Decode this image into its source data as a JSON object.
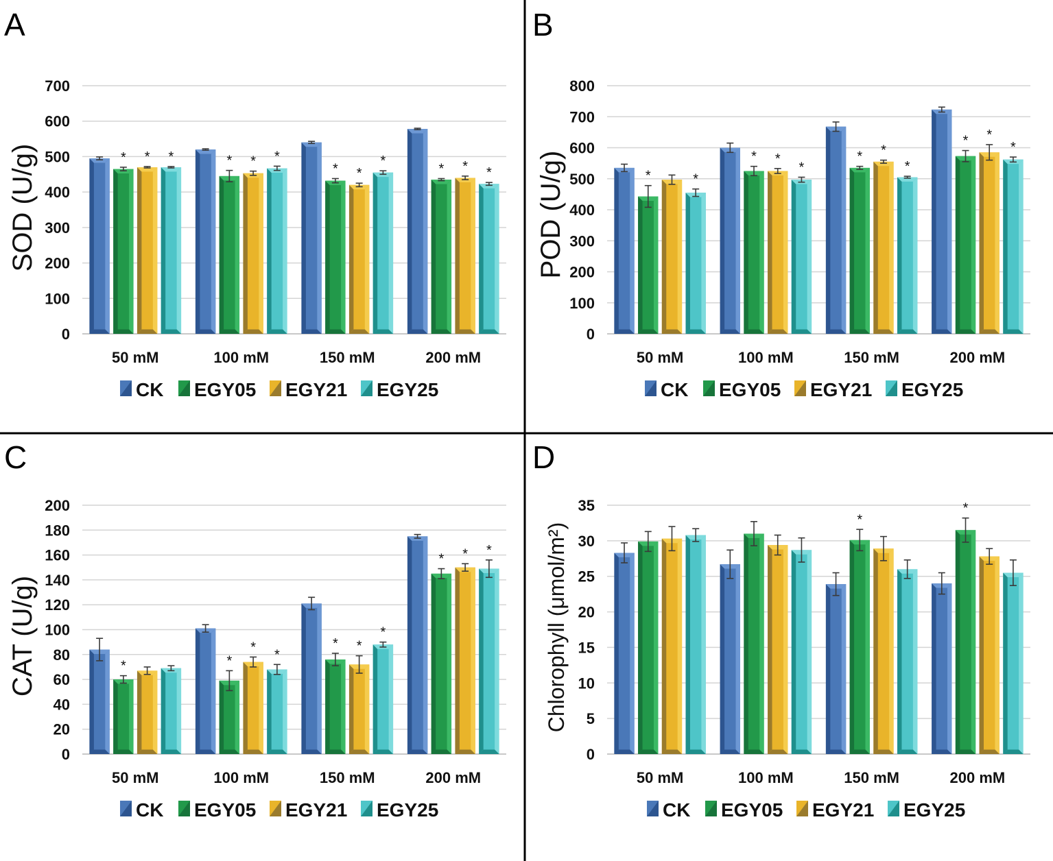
{
  "series_styles": [
    {
      "name": "CK",
      "main": "#4a78b8",
      "light": "#6d98d4",
      "dark": "#2d5590"
    },
    {
      "name": "EGY05",
      "main": "#22994a",
      "light": "#3bb965",
      "dark": "#17743a"
    },
    {
      "name": "EGY21",
      "main": "#e9b42a",
      "light": "#f5cc4e",
      "dark": "#9a7b2c"
    },
    {
      "name": "EGY25",
      "main": "#4ec5c8",
      "light": "#7edbdd",
      "dark": "#1f8f8c"
    }
  ],
  "chart_data": [
    {
      "panel": "A",
      "type": "bar",
      "title": "",
      "xlabel": "",
      "ylabel": "SOD (U/g)",
      "ylim": [
        0,
        700
      ],
      "yticks": [
        0,
        100,
        200,
        300,
        400,
        500,
        600,
        700
      ],
      "categories": [
        "50 mM",
        "100 mM",
        "150 mM",
        "200 mM"
      ],
      "legend": [
        "CK",
        "EGY05",
        "EGY21",
        "EGY25"
      ],
      "series": [
        {
          "name": "CK",
          "values": [
            495,
            520,
            540,
            578
          ],
          "errors": [
            4,
            2,
            3,
            2
          ],
          "stars": [
            false,
            false,
            false,
            false
          ]
        },
        {
          "name": "EGY05",
          "values": [
            465,
            445,
            432,
            435
          ],
          "errors": [
            5,
            16,
            6,
            3
          ],
          "stars": [
            true,
            true,
            true,
            true
          ]
        },
        {
          "name": "EGY21",
          "values": [
            470,
            453,
            420,
            440
          ],
          "errors": [
            2,
            6,
            5,
            5
          ],
          "stars": [
            true,
            true,
            true,
            true
          ]
        },
        {
          "name": "EGY25",
          "values": [
            470,
            467,
            455,
            423
          ],
          "errors": [
            2,
            6,
            5,
            4
          ],
          "stars": [
            true,
            true,
            true,
            true
          ]
        }
      ]
    },
    {
      "panel": "B",
      "type": "bar",
      "title": "",
      "xlabel": "",
      "ylabel": "POD (U/g)",
      "ylim": [
        0,
        800
      ],
      "yticks": [
        0,
        100,
        200,
        300,
        400,
        500,
        600,
        700,
        800
      ],
      "categories": [
        "50 mM",
        "100 mM",
        "150 mM",
        "200 mM"
      ],
      "legend": [
        "CK",
        "EGY05",
        "EGY21",
        "EGY25"
      ],
      "series": [
        {
          "name": "CK",
          "values": [
            535,
            600,
            668,
            723
          ],
          "errors": [
            12,
            15,
            15,
            8
          ],
          "stars": [
            false,
            false,
            false,
            false
          ]
        },
        {
          "name": "EGY05",
          "values": [
            443,
            525,
            535,
            573
          ],
          "errors": [
            35,
            15,
            5,
            18
          ],
          "stars": [
            true,
            true,
            true,
            true
          ]
        },
        {
          "name": "EGY21",
          "values": [
            497,
            525,
            555,
            585
          ],
          "errors": [
            15,
            8,
            5,
            25
          ],
          "stars": [
            false,
            true,
            true,
            true
          ]
        },
        {
          "name": "EGY25",
          "values": [
            455,
            497,
            505,
            562
          ],
          "errors": [
            12,
            8,
            3,
            8
          ],
          "stars": [
            true,
            true,
            true,
            true
          ]
        }
      ]
    },
    {
      "panel": "C",
      "type": "bar",
      "title": "",
      "xlabel": "",
      "ylabel": "CAT (U/g)",
      "ylim": [
        0,
        200
      ],
      "yticks": [
        0,
        20,
        40,
        60,
        80,
        100,
        120,
        140,
        160,
        180,
        200
      ],
      "categories": [
        "50 mM",
        "100 mM",
        "150 mM",
        "200 mM"
      ],
      "legend": [
        "CK",
        "EGY05",
        "EGY21",
        "EGY25"
      ],
      "series": [
        {
          "name": "CK",
          "values": [
            84,
            101,
            121,
            175
          ],
          "errors": [
            9,
            3,
            5,
            1.5
          ],
          "stars": [
            false,
            false,
            false,
            false
          ]
        },
        {
          "name": "EGY05",
          "values": [
            60,
            59,
            76,
            145
          ],
          "errors": [
            3,
            8,
            5,
            4
          ],
          "stars": [
            true,
            true,
            true,
            true
          ]
        },
        {
          "name": "EGY21",
          "values": [
            67,
            74,
            72,
            150
          ],
          "errors": [
            3,
            4,
            7,
            3
          ],
          "stars": [
            false,
            true,
            true,
            true
          ]
        },
        {
          "name": "EGY25",
          "values": [
            69,
            68,
            88,
            149
          ],
          "errors": [
            2,
            4,
            2,
            7
          ],
          "stars": [
            false,
            true,
            true,
            true
          ]
        }
      ]
    },
    {
      "panel": "D",
      "type": "bar",
      "title": "",
      "xlabel": "",
      "ylabel": "Chlorophyll (μmol/m²)",
      "ylim": [
        0,
        35
      ],
      "yticks": [
        0,
        5,
        10,
        15,
        20,
        25,
        30,
        35
      ],
      "categories": [
        "50 mM",
        "100 mM",
        "150 mM",
        "200 mM"
      ],
      "legend": [
        "CK",
        "EGY05",
        "EGY21",
        "EGY25"
      ],
      "series": [
        {
          "name": "CK",
          "values": [
            28.3,
            26.7,
            23.9,
            24.0
          ],
          "errors": [
            1.4,
            2.0,
            1.6,
            1.5
          ],
          "stars": [
            false,
            false,
            false,
            false
          ]
        },
        {
          "name": "EGY05",
          "values": [
            29.9,
            31.0,
            30.1,
            31.5
          ],
          "errors": [
            1.4,
            1.7,
            1.5,
            1.7
          ],
          "stars": [
            false,
            false,
            true,
            true
          ]
        },
        {
          "name": "EGY21",
          "values": [
            30.3,
            29.4,
            28.9,
            27.8
          ],
          "errors": [
            1.7,
            1.4,
            1.7,
            1.1
          ],
          "stars": [
            false,
            false,
            false,
            false
          ]
        },
        {
          "name": "EGY25",
          "values": [
            30.8,
            28.7,
            26.0,
            25.5
          ],
          "errors": [
            0.9,
            1.7,
            1.3,
            1.8
          ],
          "stars": [
            false,
            false,
            false,
            false
          ]
        }
      ]
    }
  ]
}
